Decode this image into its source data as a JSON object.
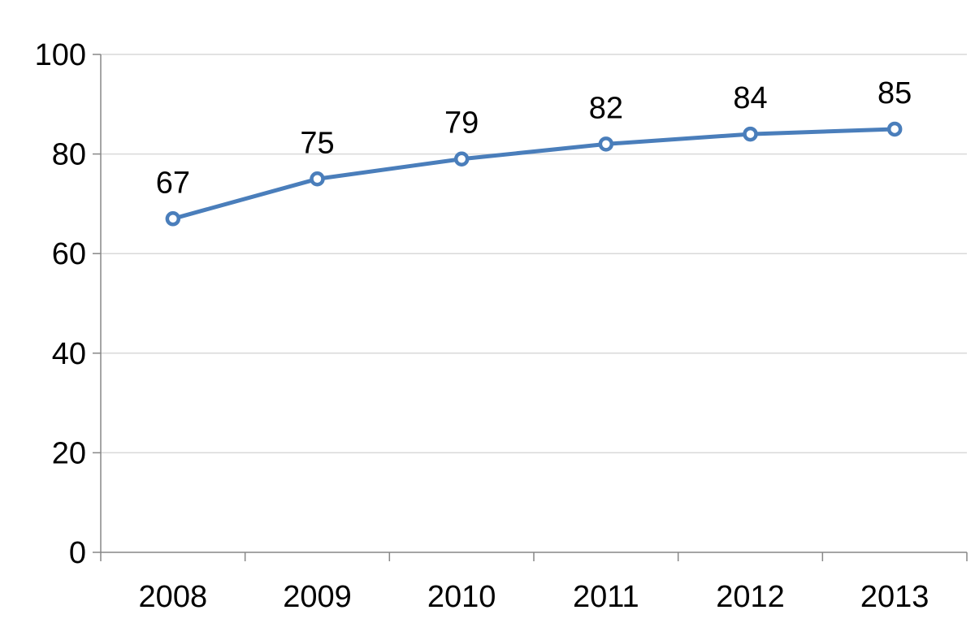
{
  "chart_data": {
    "type": "line",
    "categories": [
      "2008",
      "2009",
      "2010",
      "2011",
      "2012",
      "2013"
    ],
    "series": [
      {
        "values": [
          67,
          75,
          79,
          82,
          84,
          85
        ],
        "data_labels": [
          "67",
          "75",
          "79",
          "82",
          "84",
          "85"
        ]
      }
    ],
    "y_ticks": [
      "0",
      "20",
      "40",
      "60",
      "80",
      "100"
    ],
    "ylim": [
      0,
      100
    ],
    "grid": true,
    "legend": "none",
    "colors": {
      "line": "#4a7ebb",
      "marker_fill": "#ffffff",
      "gridline": "#d9d9d9",
      "axis": "#878787"
    }
  }
}
